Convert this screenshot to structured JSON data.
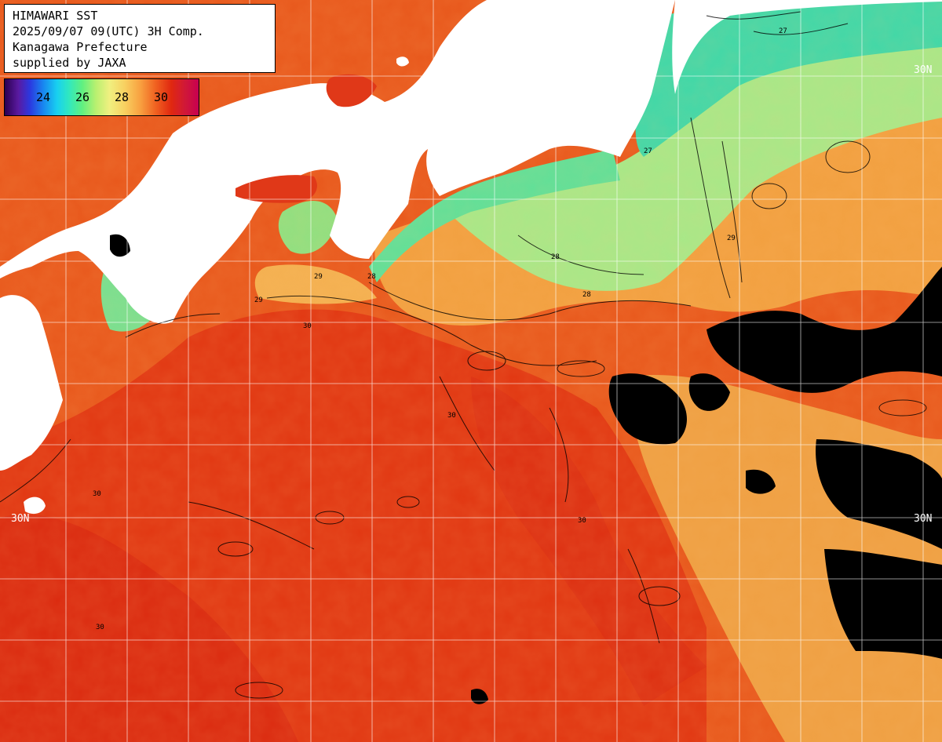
{
  "header": {
    "lines": [
      "HIMAWARI SST",
      "2025/09/07 09(UTC) 3H Comp.",
      "Kanagawa Prefecture",
      "supplied by JAXA"
    ]
  },
  "colorbar": {
    "labels": [
      "24",
      "26",
      "28",
      "30"
    ]
  },
  "graticule": {
    "lat_labels": [
      "30N",
      "30N",
      "30N"
    ]
  },
  "contours": {
    "labels": [
      "27",
      "27",
      "28",
      "28",
      "28",
      "29",
      "29",
      "29",
      "30",
      "30",
      "30",
      "30",
      "30"
    ]
  },
  "colors": {
    "warm_sea": "#e8581c",
    "hot_sea": "#e03010",
    "mild_sea": "#f4a040",
    "cool_sea": "#a0e888",
    "coastal_cool": "#40d8a8",
    "land": "#ffffff",
    "cloud": "#000000",
    "grid": "#ffffff"
  }
}
